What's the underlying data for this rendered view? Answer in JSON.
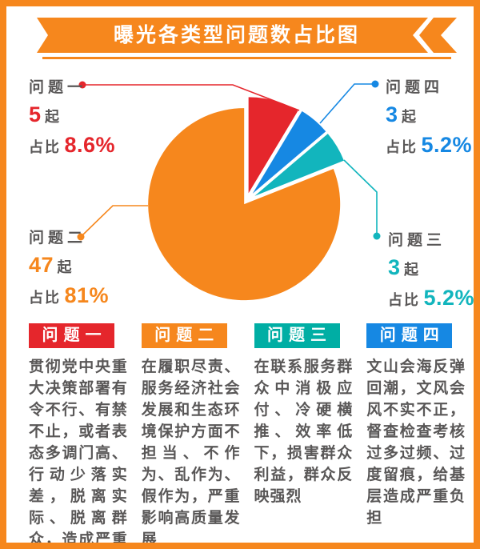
{
  "title": "曝光各类型问题数占比图",
  "colors": {
    "orange": "#F6871D",
    "red": "#E5262C",
    "blue": "#1688E3",
    "teal_pie": "#12B5BD",
    "teal_header": "#00AEA4",
    "text_gray": "#595757",
    "white": "#FFFFFF"
  },
  "chart_data": {
    "type": "pie",
    "title": "曝光各类型问题数占比图",
    "unit": "起",
    "legend_position": "callouts-around-pie",
    "slices": [
      {
        "label": "问题一",
        "count": 5,
        "pct_value": 8.6,
        "pct": "8.6%",
        "color": "#E5262C"
      },
      {
        "label": "问题四",
        "count": 3,
        "pct_value": 5.2,
        "pct": "5.2%",
        "color": "#1688E3"
      },
      {
        "label": "问题三",
        "count": 3,
        "pct_value": 5.2,
        "pct": "5.2%",
        "color": "#12B5BD"
      },
      {
        "label": "问题二",
        "count": 47,
        "pct_value": 81,
        "pct": "81%",
        "color": "#F6871D"
      }
    ]
  },
  "callouts": {
    "issue1": {
      "label": "问题一",
      "count": "5",
      "unit": "起",
      "pct_label": "占比",
      "pct": "8.6%"
    },
    "issue2": {
      "label": "问题二",
      "count": "47",
      "unit": "起",
      "pct_label": "占比",
      "pct": "81%"
    },
    "issue3": {
      "label": "问题三",
      "count": "3",
      "unit": "起",
      "pct_label": "占比",
      "pct": "5.2%"
    },
    "issue4": {
      "label": "问题四",
      "count": "3",
      "unit": "起",
      "pct_label": "占比",
      "pct": "5.2%"
    }
  },
  "columns": [
    {
      "header": "问题一",
      "body": "贯彻党中央重大决策部署有令不行、有禁不止，或者表态多调门高、行动少落实差，脱离实际、脱离群众，造成严重后果"
    },
    {
      "header": "问题二",
      "body": "在履职尽责、服务经济社会发展和生态环境保护方面不担当、不作为、乱作为、假作为，严重影响高质量发展"
    },
    {
      "header": "问题三",
      "body": "在联系服务群众中消极应付、冷硬横推、效率低下，损害群众利益，群众反映强烈"
    },
    {
      "header": "问题四",
      "body": "文山会海反弹回潮，文风会风不实不正，督查检查考核过多过频、过度留痕，给基层造成严重负担"
    }
  ]
}
